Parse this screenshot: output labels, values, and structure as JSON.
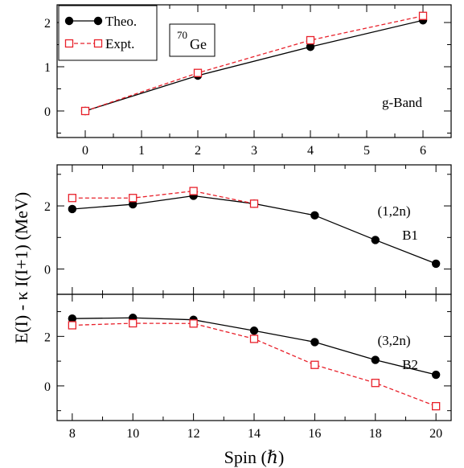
{
  "chart_data": [
    {
      "type": "line",
      "panel": "g-Band",
      "annotations": [
        "g-Band"
      ],
      "x": [
        0,
        2,
        4,
        6
      ],
      "xlim": [
        -0.5,
        6.5
      ],
      "ylim": [
        -0.6,
        2.4
      ],
      "xticks": [
        0,
        1,
        2,
        3,
        4,
        5,
        6
      ],
      "yticks": [
        0,
        1,
        2
      ],
      "series": [
        {
          "name": "Theo.",
          "values": [
            0.0,
            0.8,
            1.45,
            2.05
          ],
          "color": "#000000",
          "marker": "filled-circle",
          "line": "solid"
        },
        {
          "name": "Expt.",
          "values": [
            0.0,
            0.86,
            1.6,
            2.15
          ],
          "color": "#e8202a",
          "marker": "open-square",
          "line": "dashed"
        }
      ],
      "legend": {
        "placement": "top-left",
        "entries": [
          "Theo.",
          "Expt."
        ]
      },
      "label_box": {
        "mass": "70",
        "element": "Ge"
      }
    },
    {
      "type": "line",
      "panel": "B1",
      "annotations": [
        "(1,2n)",
        "B1"
      ],
      "x": [
        8,
        10,
        12,
        14,
        16,
        18,
        20
      ],
      "xlim": [
        7.5,
        20.5
      ],
      "ylim": [
        -0.8,
        3.3
      ],
      "yticks": [
        0,
        2
      ],
      "series": [
        {
          "name": "Theo.",
          "values": [
            1.9,
            2.05,
            2.32,
            2.07,
            1.7,
            0.92,
            0.17
          ],
          "color": "#000000",
          "marker": "filled-circle",
          "line": "solid"
        },
        {
          "name": "Expt.",
          "values": [
            2.25,
            2.25,
            2.47,
            2.07,
            null,
            null,
            null
          ],
          "color": "#e8202a",
          "marker": "open-square",
          "line": "dashed"
        }
      ]
    },
    {
      "type": "line",
      "panel": "B2",
      "annotations": [
        "(3,2n)",
        "B2"
      ],
      "x": [
        8,
        10,
        12,
        14,
        16,
        18,
        20
      ],
      "xlim": [
        7.5,
        20.5
      ],
      "ylim": [
        -1.4,
        3.7
      ],
      "xticks": [
        8,
        10,
        12,
        14,
        16,
        18,
        20
      ],
      "yticks": [
        0,
        2
      ],
      "series": [
        {
          "name": "Theo.",
          "values": [
            2.72,
            2.75,
            2.67,
            2.23,
            1.77,
            1.05,
            0.45
          ],
          "color": "#000000",
          "marker": "filled-circle",
          "line": "solid"
        },
        {
          "name": "Expt.",
          "values": [
            2.45,
            2.53,
            2.52,
            1.9,
            0.85,
            0.12,
            -0.82
          ],
          "color": "#e8202a",
          "marker": "open-square",
          "line": "dashed"
        }
      ]
    }
  ],
  "axes": {
    "ylabel": "E(I) - κ I(I+1) (MeV)",
    "xlabel": "Spin (ℏ)"
  }
}
